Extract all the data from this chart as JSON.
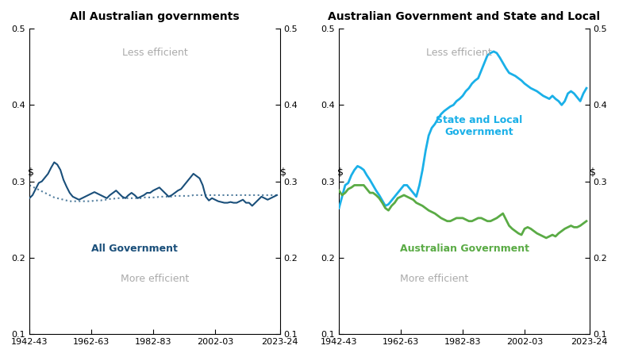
{
  "title_left": "All Australian governments",
  "title_right": "Australian Government and State and Local",
  "xlim": [
    0,
    81
  ],
  "ylim": [
    0.1,
    0.5
  ],
  "yticks": [
    0.1,
    0.2,
    0.3,
    0.4,
    0.5
  ],
  "xtick_labels": [
    "1942-43",
    "1962-63",
    "1982-83",
    "2002-03",
    "2023-24"
  ],
  "xtick_positions": [
    0,
    20,
    40,
    60,
    81
  ],
  "less_efficient_text": "Less efficient",
  "more_efficient_text": "More efficient",
  "dollar_sign": "$",
  "color_dark_blue": "#1a4f7a",
  "color_cyan": "#1ab0e8",
  "color_green": "#5aab45",
  "color_dotted": "#5580a0",
  "all_gov_label": "All Government",
  "state_local_label": "State and Local\nGovernment",
  "aus_gov_label": "Australian Government",
  "all_gov_solid": [
    0.278,
    0.282,
    0.29,
    0.298,
    0.3,
    0.305,
    0.31,
    0.318,
    0.325,
    0.322,
    0.315,
    0.302,
    0.293,
    0.285,
    0.28,
    0.278,
    0.276,
    0.278,
    0.28,
    0.282,
    0.284,
    0.286,
    0.284,
    0.282,
    0.28,
    0.278,
    0.282,
    0.285,
    0.288,
    0.284,
    0.28,
    0.278,
    0.282,
    0.285,
    0.282,
    0.278,
    0.28,
    0.282,
    0.285,
    0.285,
    0.288,
    0.29,
    0.292,
    0.288,
    0.284,
    0.28,
    0.282,
    0.285,
    0.288,
    0.29,
    0.295,
    0.3,
    0.305,
    0.31,
    0.307,
    0.304,
    0.295,
    0.28,
    0.275,
    0.278,
    0.276,
    0.274,
    0.273,
    0.272,
    0.272,
    0.273,
    0.272,
    0.272,
    0.274,
    0.276,
    0.272,
    0.272,
    0.268,
    0.272,
    0.276,
    0.28,
    0.278,
    0.276,
    0.278,
    0.28,
    0.282
  ],
  "all_gov_dotted": [
    0.295,
    0.293,
    0.291,
    0.289,
    0.287,
    0.285,
    0.283,
    0.281,
    0.279,
    0.278,
    0.277,
    0.276,
    0.275,
    0.274,
    0.274,
    0.274,
    0.274,
    0.274,
    0.274,
    0.274,
    0.274,
    0.275,
    0.275,
    0.275,
    0.276,
    0.276,
    0.277,
    0.277,
    0.278,
    0.278,
    0.278,
    0.278,
    0.278,
    0.278,
    0.278,
    0.278,
    0.278,
    0.279,
    0.279,
    0.279,
    0.279,
    0.279,
    0.28,
    0.28,
    0.28,
    0.28,
    0.28,
    0.281,
    0.281,
    0.281,
    0.281,
    0.281,
    0.281,
    0.282,
    0.282,
    0.282,
    0.282,
    0.282,
    0.282,
    0.282,
    0.282,
    0.282,
    0.282,
    0.282,
    0.282,
    0.282,
    0.282,
    0.282,
    0.282,
    0.282,
    0.282,
    0.282,
    0.282,
    0.282,
    0.282,
    0.282,
    0.282,
    0.282,
    0.282,
    0.282,
    0.282
  ],
  "state_local": [
    0.265,
    0.28,
    0.295,
    0.298,
    0.308,
    0.315,
    0.32,
    0.318,
    0.315,
    0.308,
    0.302,
    0.295,
    0.288,
    0.282,
    0.275,
    0.268,
    0.27,
    0.275,
    0.28,
    0.285,
    0.29,
    0.295,
    0.295,
    0.29,
    0.285,
    0.28,
    0.295,
    0.315,
    0.34,
    0.36,
    0.37,
    0.375,
    0.382,
    0.388,
    0.392,
    0.395,
    0.398,
    0.4,
    0.405,
    0.408,
    0.412,
    0.418,
    0.422,
    0.428,
    0.432,
    0.435,
    0.445,
    0.455,
    0.465,
    0.468,
    0.47,
    0.468,
    0.462,
    0.455,
    0.448,
    0.442,
    0.44,
    0.438,
    0.435,
    0.432,
    0.428,
    0.425,
    0.422,
    0.42,
    0.418,
    0.415,
    0.412,
    0.41,
    0.408,
    0.412,
    0.408,
    0.405,
    0.4,
    0.405,
    0.415,
    0.418,
    0.415,
    0.41,
    0.405,
    0.415,
    0.422
  ],
  "aus_gov": [
    0.288,
    0.282,
    0.285,
    0.29,
    0.292,
    0.295,
    0.295,
    0.295,
    0.295,
    0.29,
    0.285,
    0.285,
    0.282,
    0.278,
    0.272,
    0.265,
    0.262,
    0.268,
    0.272,
    0.278,
    0.28,
    0.282,
    0.28,
    0.278,
    0.276,
    0.272,
    0.27,
    0.268,
    0.265,
    0.262,
    0.26,
    0.258,
    0.255,
    0.252,
    0.25,
    0.248,
    0.248,
    0.25,
    0.252,
    0.252,
    0.252,
    0.25,
    0.248,
    0.248,
    0.25,
    0.252,
    0.252,
    0.25,
    0.248,
    0.248,
    0.25,
    0.252,
    0.255,
    0.258,
    0.25,
    0.242,
    0.238,
    0.235,
    0.232,
    0.23,
    0.238,
    0.24,
    0.238,
    0.235,
    0.232,
    0.23,
    0.228,
    0.226,
    0.228,
    0.23,
    0.228,
    0.232,
    0.235,
    0.238,
    0.24,
    0.242,
    0.24,
    0.24,
    0.242,
    0.245,
    0.248
  ]
}
